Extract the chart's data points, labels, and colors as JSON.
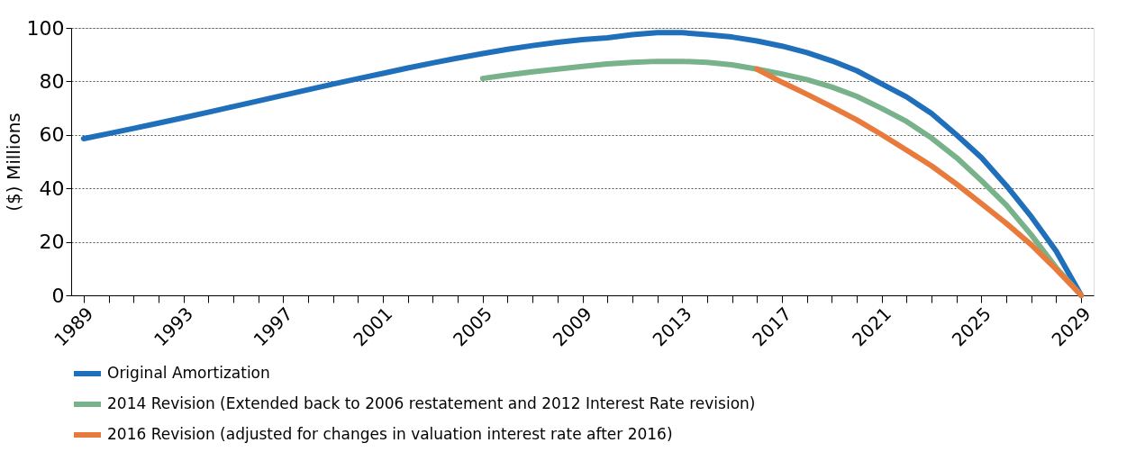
{
  "chart_data": {
    "type": "line",
    "ylabel": "($) Millions",
    "xlim": [
      1988.5,
      2029.5
    ],
    "xticks": [
      {
        "value": 1989,
        "label": "1989"
      },
      {
        "value": 1990,
        "label": null
      },
      {
        "value": 1991,
        "label": null
      },
      {
        "value": 1992,
        "label": null
      },
      {
        "value": 1993,
        "label": "1993"
      },
      {
        "value": 1994,
        "label": null
      },
      {
        "value": 1995,
        "label": null
      },
      {
        "value": 1996,
        "label": null
      },
      {
        "value": 1997,
        "label": "1997"
      },
      {
        "value": 1998,
        "label": null
      },
      {
        "value": 1999,
        "label": null
      },
      {
        "value": 2000,
        "label": null
      },
      {
        "value": 2001,
        "label": "2001"
      },
      {
        "value": 2002,
        "label": null
      },
      {
        "value": 2003,
        "label": null
      },
      {
        "value": 2004,
        "label": null
      },
      {
        "value": 2005,
        "label": "2005"
      },
      {
        "value": 2006,
        "label": null
      },
      {
        "value": 2007,
        "label": null
      },
      {
        "value": 2008,
        "label": null
      },
      {
        "value": 2009,
        "label": "2009"
      },
      {
        "value": 2010,
        "label": null
      },
      {
        "value": 2011,
        "label": null
      },
      {
        "value": 2012,
        "label": null
      },
      {
        "value": 2013,
        "label": "2013"
      },
      {
        "value": 2014,
        "label": null
      },
      {
        "value": 2015,
        "label": null
      },
      {
        "value": 2016,
        "label": null
      },
      {
        "value": 2017,
        "label": "2017"
      },
      {
        "value": 2018,
        "label": null
      },
      {
        "value": 2019,
        "label": null
      },
      {
        "value": 2020,
        "label": null
      },
      {
        "value": 2021,
        "label": "2021"
      },
      {
        "value": 2022,
        "label": null
      },
      {
        "value": 2023,
        "label": null
      },
      {
        "value": 2024,
        "label": null
      },
      {
        "value": 2025,
        "label": "2025"
      },
      {
        "value": 2026,
        "label": null
      },
      {
        "value": 2027,
        "label": null
      },
      {
        "value": 2028,
        "label": null
      },
      {
        "value": 2029,
        "label": "2029"
      }
    ],
    "ylim": [
      0,
      100
    ],
    "yticks": [
      0,
      20,
      40,
      60,
      80,
      100
    ],
    "grid": "y",
    "legend": "bottom",
    "marker": "none",
    "line_style": "solid",
    "series": [
      {
        "name": "Original Amortization",
        "color": "#1f6fba",
        "x": [
          1989,
          1990,
          1991,
          1992,
          1993,
          1994,
          1995,
          1996,
          1997,
          1998,
          1999,
          2000,
          2001,
          2002,
          2003,
          2004,
          2005,
          2006,
          2007,
          2008,
          2009,
          2010,
          2011,
          2012,
          2013,
          2014,
          2015,
          2016,
          2017,
          2018,
          2019,
          2020,
          2021,
          2022,
          2023,
          2024,
          2025,
          2026,
          2027,
          2028,
          2029
        ],
        "values": [
          58.6,
          60.5,
          62.4,
          64.4,
          66.4,
          68.5,
          70.6,
          72.7,
          74.8,
          76.9,
          79.0,
          81.0,
          83.0,
          85.0,
          86.9,
          88.7,
          90.4,
          92.0,
          93.4,
          94.6,
          95.6,
          96.3,
          97.5,
          98.2,
          98.2,
          97.5,
          96.6,
          95.1,
          93.2,
          90.8,
          87.7,
          84.0,
          79.1,
          74.2,
          68.0,
          60.0,
          51.5,
          41.0,
          29.4,
          16.5,
          0
        ]
      },
      {
        "name": "2014 Revision (Extended back to 2006 restatement and 2012 Interest Rate revision)",
        "color": "#77b28a",
        "x": [
          2005,
          2006,
          2007,
          2008,
          2009,
          2010,
          2011,
          2012,
          2013,
          2014,
          2015,
          2016,
          2017,
          2018,
          2019,
          2020,
          2021,
          2022,
          2023,
          2024,
          2025,
          2026,
          2027,
          2028,
          2029
        ],
        "values": [
          81.1,
          82.4,
          83.6,
          84.6,
          85.6,
          86.5,
          87.1,
          87.5,
          87.5,
          87.1,
          86.2,
          84.6,
          82.8,
          80.7,
          77.9,
          74.4,
          69.9,
          65.0,
          58.8,
          51.5,
          42.9,
          33.7,
          22.6,
          10.3,
          0
        ]
      },
      {
        "name": "2016 Revision (adjusted for changes in valuation interest rate after 2016)",
        "color": "#e87b3c",
        "x": [
          2016,
          2017,
          2018,
          2019,
          2020,
          2021,
          2022,
          2023,
          2024,
          2025,
          2026,
          2027,
          2028,
          2029
        ],
        "values": [
          84.6,
          79.7,
          75.2,
          70.5,
          65.6,
          60.1,
          54.3,
          48.4,
          41.6,
          34.3,
          26.9,
          18.9,
          9.7,
          0
        ]
      }
    ]
  }
}
